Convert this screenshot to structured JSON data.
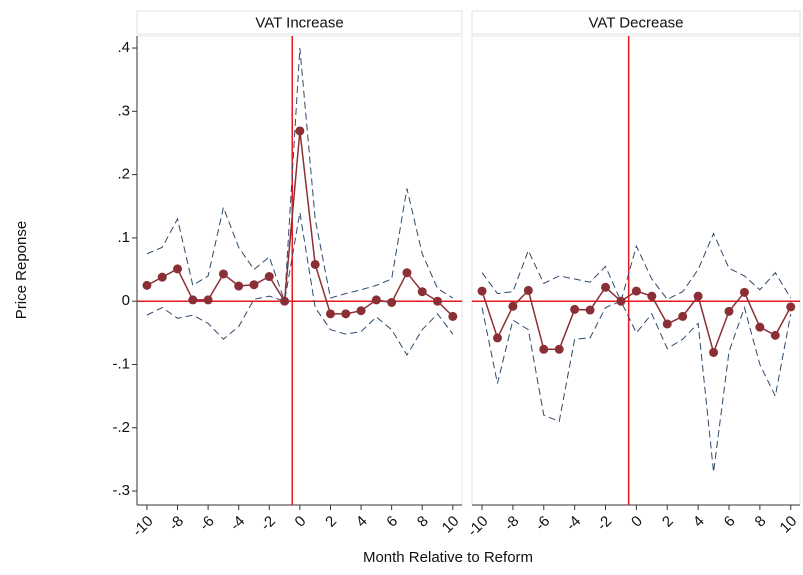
{
  "chart_data": {
    "type": "line",
    "y_label": "Price Reponse",
    "x_label": "Month Relative to Reform",
    "ylim": [
      -0.322,
      0.419
    ],
    "yticks": [
      {
        "value": 0.4,
        "label": ".4"
      },
      {
        "value": 0.3,
        "label": ".3"
      },
      {
        "value": 0.2,
        "label": ".2"
      },
      {
        "value": 0.1,
        "label": ".1"
      },
      0,
      {
        "value": -0.1,
        "label": "-.1"
      },
      {
        "value": -0.2,
        "label": "-.2"
      },
      {
        "value": -0.3,
        "label": "-.3"
      }
    ],
    "xlim": [
      -10.65,
      10.6
    ],
    "xticks": [
      -10,
      -8,
      -6,
      -4,
      -2,
      0,
      2,
      4,
      6,
      8,
      10
    ],
    "x": [
      -10,
      -9,
      -8,
      -7,
      -6,
      -5,
      -4,
      -3,
      -2,
      -1,
      0,
      1,
      2,
      3,
      4,
      5,
      6,
      7,
      8,
      9,
      10
    ],
    "vline": -0.5,
    "hline": 0,
    "ref_color": "#e8191e",
    "panels": [
      {
        "title": "VAT Increase",
        "series": [
          {
            "color": "#2e4a6b",
            "style": "dashed",
            "values": [
              0.075,
              0.085,
              0.13,
              0.025,
              0.04,
              0.148,
              0.085,
              0.05,
              0.07,
              0,
              0.4,
              0.13,
              0.005,
              0.012,
              0.018,
              0.025,
              0.035,
              0.178,
              0.075,
              0.02,
              0.005
            ]
          },
          {
            "color": "#2e4a6b",
            "style": "dashed",
            "values": [
              -0.022,
              -0.01,
              -0.027,
              -0.022,
              -0.035,
              -0.06,
              -0.04,
              0.003,
              0.008,
              0,
              0.14,
              -0.01,
              -0.045,
              -0.052,
              -0.048,
              -0.025,
              -0.045,
              -0.085,
              -0.045,
              -0.02,
              -0.052
            ]
          },
          {
            "color": "#8b2f36",
            "style": "solid",
            "markers": true,
            "values": [
              0.025,
              0.038,
              0.051,
              0.002,
              0.002,
              0.043,
              0.024,
              0.026,
              0.039,
              0,
              0.269,
              0.058,
              -0.02,
              -0.02,
              -0.015,
              0.002,
              -0.002,
              0.045,
              0.015,
              0,
              -0.024
            ]
          }
        ]
      },
      {
        "title": "VAT Decrease",
        "series": [
          {
            "color": "#2e4a6b",
            "style": "dashed",
            "values": [
              0.045,
              0.012,
              0.015,
              0.08,
              0.028,
              0.04,
              0.035,
              0.03,
              0.055,
              0,
              0.087,
              0.035,
              0.003,
              0.015,
              0.05,
              0.107,
              0.052,
              0.04,
              0.018,
              0.045,
              0.005
            ]
          },
          {
            "color": "#2e4a6b",
            "style": "dashed",
            "values": [
              -0.01,
              -0.13,
              -0.03,
              -0.045,
              -0.18,
              -0.19,
              -0.06,
              -0.058,
              -0.01,
              0,
              -0.05,
              -0.02,
              -0.075,
              -0.06,
              -0.035,
              -0.27,
              -0.08,
              -0.01,
              -0.1,
              -0.15,
              -0.02
            ]
          },
          {
            "color": "#8b2f36",
            "style": "solid",
            "markers": true,
            "values": [
              0.016,
              -0.058,
              -0.008,
              0.017,
              -0.076,
              -0.076,
              -0.013,
              -0.014,
              0.022,
              0,
              0.016,
              0.008,
              -0.036,
              -0.024,
              0.008,
              -0.081,
              -0.016,
              0.014,
              -0.041,
              -0.054,
              -0.009
            ]
          }
        ]
      }
    ]
  }
}
